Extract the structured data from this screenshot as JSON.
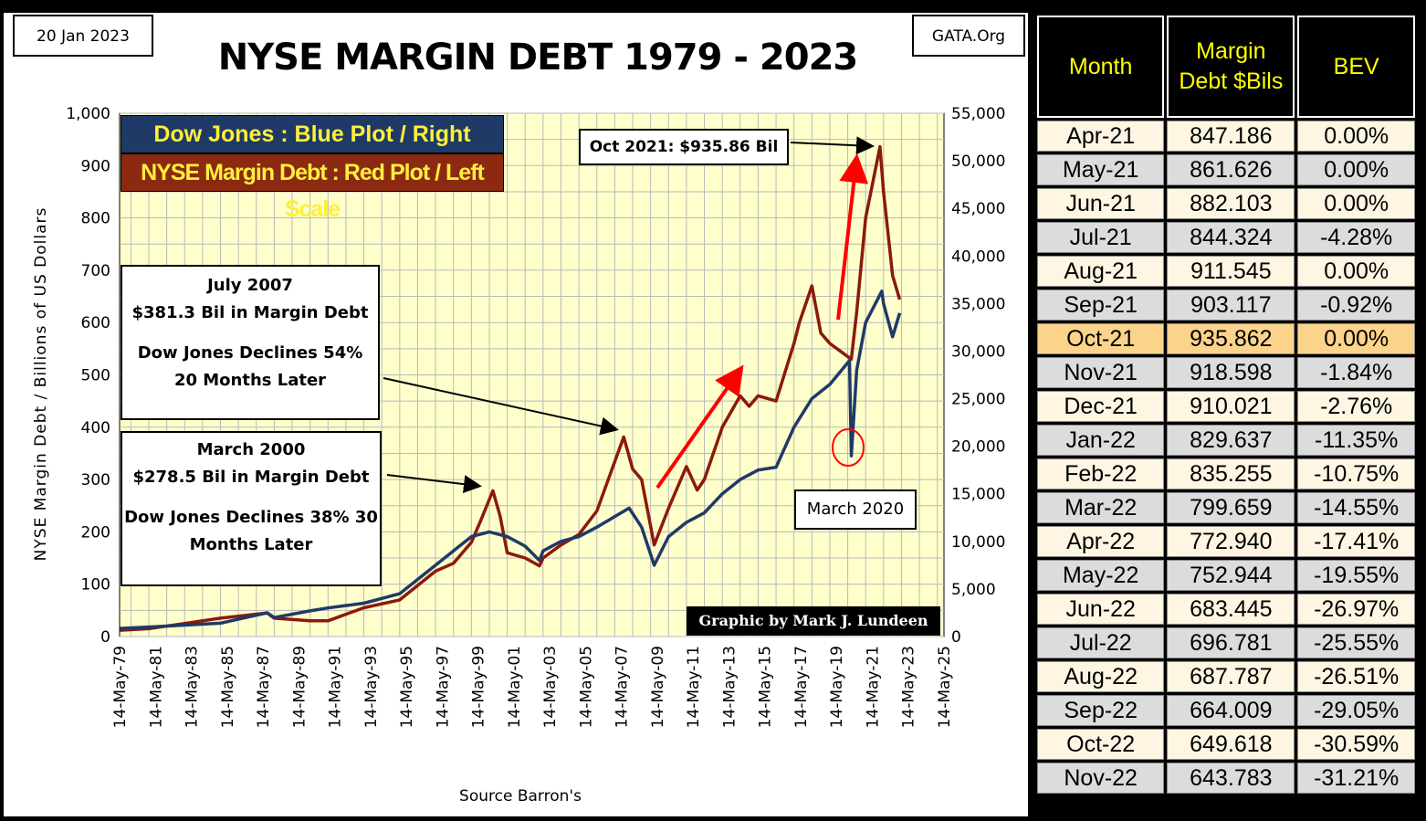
{
  "header": {
    "date": "20 Jan 2023",
    "source_site": "GATA.Org",
    "title": "NYSE MARGIN DEBT 1979 - 2023"
  },
  "legend": {
    "blue": "Dow Jones : Blue Plot / Right Scale",
    "red": "NYSE Margin Debt : Red Plot / Left Scale"
  },
  "annotations": {
    "oct2021": "Oct 2021: $935.86  Bil",
    "july2007": [
      "July 2007",
      "$381.3  Bil in Margin Debt",
      "Dow Jones Declines 54%",
      "20 Months Later"
    ],
    "march2000": [
      "March  2000",
      "$278.5  Bil in Margin Debt",
      "Dow Jones Declines 38% 30",
      "Months Later"
    ],
    "march2020": "March  2020",
    "credit": "Graphic by Mark J. Lundeen",
    "source": "Source Barron's"
  },
  "colors": {
    "margin_debt": "#8b1a0a",
    "dow_jones": "#1f3a66",
    "plot_bg": "#ffffcc",
    "arrow": "#ff0000"
  },
  "chart_data": {
    "type": "line",
    "ylabel": "NYSE Margin Debt  /  Billions of US Dollars",
    "xlabel": "Source Barron's",
    "ylim_left": [
      0,
      1000
    ],
    "ylim_right": [
      0,
      55000
    ],
    "yticks_left": [
      "0",
      "100",
      "200",
      "300",
      "400",
      "500",
      "600",
      "700",
      "800",
      "900",
      "1,000"
    ],
    "yticks_right": [
      "0",
      "5,000",
      "10,000",
      "15,000",
      "20,000",
      "25,000",
      "30,000",
      "35,000",
      "40,000",
      "45,000",
      "50,000",
      "55,000"
    ],
    "xticks": [
      "14-May-79",
      "14-May-81",
      "14-May-83",
      "14-May-85",
      "14-May-87",
      "14-May-89",
      "14-May-91",
      "14-May-93",
      "14-May-95",
      "14-May-97",
      "14-May-99",
      "14-May-01",
      "14-May-03",
      "14-May-05",
      "14-May-07",
      "14-May-09",
      "14-May-11",
      "14-May-13",
      "14-May-15",
      "14-May-17",
      "14-May-19",
      "14-May-21",
      "14-May-23",
      "14-May-25"
    ],
    "x_range": [
      1979.37,
      2025.37
    ],
    "series": [
      {
        "name": "NYSE Margin Debt",
        "axis": "left",
        "x": [
          1979.4,
          1981,
          1983,
          1985,
          1987.6,
          1988,
          1990,
          1991,
          1993,
          1995,
          1997,
          1998,
          1999,
          1999.5,
          2000.2,
          2000.6,
          2001,
          2002,
          2002.8,
          2003,
          2004,
          2005,
          2006,
          2007.5,
          2008,
          2008.5,
          2009.2,
          2010,
          2011,
          2011.6,
          2012,
          2013,
          2014,
          2014.5,
          2015,
          2016,
          2017,
          2017.3,
          2018,
          2018.5,
          2019,
          2020.2,
          2020.5,
          2021,
          2021.8,
          2022,
          2022.5,
          2022.9
        ],
        "y": [
          12,
          15,
          25,
          35,
          45,
          35,
          30,
          30,
          55,
          70,
          125,
          140,
          180,
          220,
          278.5,
          230,
          160,
          150,
          135,
          150,
          175,
          195,
          240,
          381.3,
          320,
          300,
          175,
          245,
          325,
          280,
          300,
          400,
          460,
          440,
          460,
          450,
          560,
          600,
          670,
          580,
          560,
          530,
          620,
          800,
          935.9,
          850,
          690,
          644
        ]
      },
      {
        "name": "Dow Jones",
        "axis": "right",
        "x": [
          1979.4,
          1981,
          1983,
          1985,
          1987.6,
          1988,
          1990,
          1991,
          1993,
          1995,
          1997,
          1998,
          1999,
          2000,
          2001,
          2002,
          2002.8,
          2003,
          2004,
          2005,
          2006,
          2007.8,
          2008.5,
          2009.2,
          2010,
          2011,
          2012,
          2013,
          2014,
          2015,
          2016,
          2017,
          2018,
          2019,
          2020.1,
          2020.2,
          2020.5,
          2021,
          2021.9,
          2022,
          2022.5,
          2022.9
        ],
        "y": [
          850,
          1000,
          1200,
          1400,
          2500,
          2000,
          2700,
          3000,
          3500,
          4500,
          7500,
          9000,
          10500,
          11000,
          10500,
          9500,
          8000,
          9000,
          10000,
          10500,
          11500,
          13500,
          11500,
          7500,
          10500,
          12000,
          13000,
          15000,
          16500,
          17500,
          17800,
          22000,
          25000,
          26500,
          29000,
          19000,
          28000,
          33000,
          36300,
          35000,
          31500,
          34000
        ]
      }
    ]
  },
  "table": {
    "headers": [
      "Month",
      "Margin Debt $Bils",
      "BEV"
    ],
    "highlight_month": "Oct-21",
    "rows": [
      [
        "Apr-21",
        "847.186",
        "0.00%"
      ],
      [
        "May-21",
        "861.626",
        "0.00%"
      ],
      [
        "Jun-21",
        "882.103",
        "0.00%"
      ],
      [
        "Jul-21",
        "844.324",
        "-4.28%"
      ],
      [
        "Aug-21",
        "911.545",
        "0.00%"
      ],
      [
        "Sep-21",
        "903.117",
        "-0.92%"
      ],
      [
        "Oct-21",
        "935.862",
        "0.00%"
      ],
      [
        "Nov-21",
        "918.598",
        "-1.84%"
      ],
      [
        "Dec-21",
        "910.021",
        "-2.76%"
      ],
      [
        "Jan-22",
        "829.637",
        "-11.35%"
      ],
      [
        "Feb-22",
        "835.255",
        "-10.75%"
      ],
      [
        "Mar-22",
        "799.659",
        "-14.55%"
      ],
      [
        "Apr-22",
        "772.940",
        "-17.41%"
      ],
      [
        "May-22",
        "752.944",
        "-19.55%"
      ],
      [
        "Jun-22",
        "683.445",
        "-26.97%"
      ],
      [
        "Jul-22",
        "696.781",
        "-25.55%"
      ],
      [
        "Aug-22",
        "687.787",
        "-26.51%"
      ],
      [
        "Sep-22",
        "664.009",
        "-29.05%"
      ],
      [
        "Oct-22",
        "649.618",
        "-30.59%"
      ],
      [
        "Nov-22",
        "643.783",
        "-31.21%"
      ]
    ]
  }
}
